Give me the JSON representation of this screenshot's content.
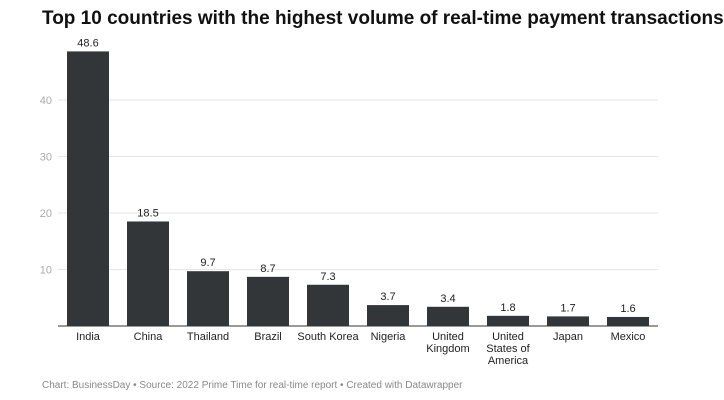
{
  "chart_data": {
    "type": "bar",
    "title": "Top 10 countries with the highest volume of real-time payment transactions",
    "categories": [
      "India",
      "China",
      "Thailand",
      "Brazil",
      "South Korea",
      "Nigeria",
      "United Kingdom",
      "United States of America",
      "Japan",
      "Mexico"
    ],
    "category_lines": [
      [
        "India"
      ],
      [
        "China"
      ],
      [
        "Thailand"
      ],
      [
        "Brazil"
      ],
      [
        "South Korea"
      ],
      [
        "Nigeria"
      ],
      [
        "United",
        "Kingdom"
      ],
      [
        "United",
        "States of",
        "America"
      ],
      [
        "Japan"
      ],
      [
        "Mexico"
      ]
    ],
    "values": [
      48.6,
      18.5,
      9.7,
      8.7,
      7.3,
      3.7,
      3.4,
      1.8,
      1.7,
      1.6
    ],
    "value_labels": [
      "48.6",
      "18.5",
      "9.7",
      "8.7",
      "7.3",
      "3.7",
      "3.4",
      "1.8",
      "1.7",
      "1.6"
    ],
    "yticks": [
      10,
      20,
      30,
      40
    ],
    "ylim": [
      0,
      50
    ],
    "grid": true,
    "bar_color": "#333639",
    "xlabel": "",
    "ylabel": ""
  },
  "footer": "Chart: BusinessDay • Source: 2022 Prime Time for real-time report • Created with Datawrapper"
}
